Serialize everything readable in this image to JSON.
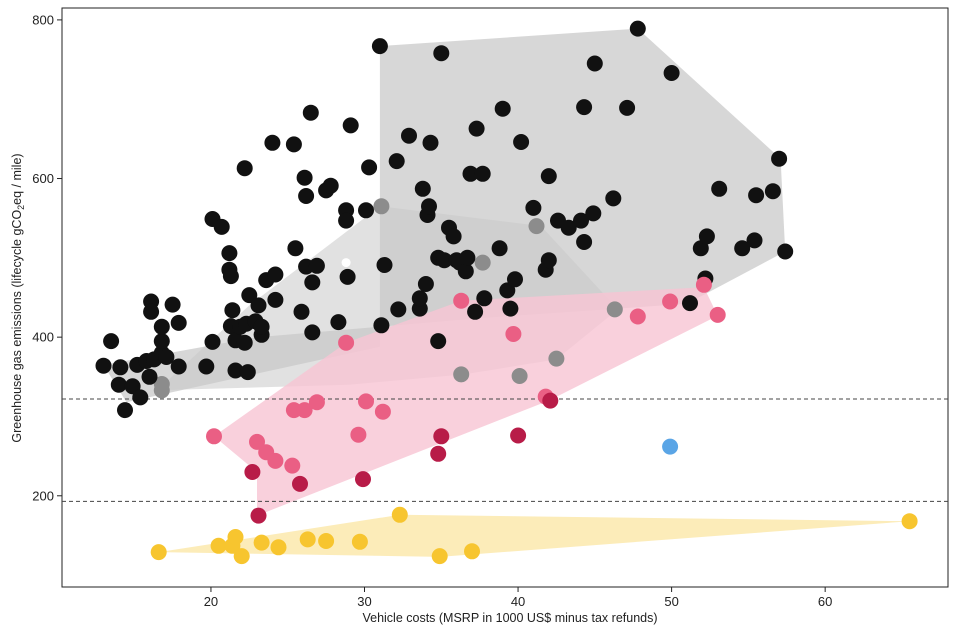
{
  "chart_data": {
    "type": "scatter",
    "title": "",
    "xlabel": "Vehicle costs (MSRP in 1000 US$ minus tax refunds)",
    "ylabel_parts": [
      "Greenhouse gas emissions (lifecycle gCO",
      "2",
      "eq / mile)"
    ],
    "xlim": [
      10.3,
      68
    ],
    "ylim": [
      85,
      815
    ],
    "xticks": [
      20,
      30,
      40,
      50,
      60
    ],
    "yticks": [
      200,
      400,
      600,
      800
    ],
    "reference_lines_y": [
      322,
      193
    ],
    "colors": {
      "black": "#111111",
      "gray": "#8c8c8c",
      "pink": "#ea5f84",
      "crimson": "#b81c48",
      "blue": "#5aa5e6",
      "yellow": "#f7c52f",
      "hull_gray": "#c9c9c9",
      "hull_pink": "#f7c4d3",
      "hull_yellow": "#fbe7a8"
    },
    "hulls": [
      {
        "color": "hull_gray",
        "opacity": 0.75,
        "points": [
          [
            13.0,
            365
          ],
          [
            14.5,
            318
          ],
          [
            31.0,
            388
          ],
          [
            31.0,
            767
          ],
          [
            47.8,
            789
          ],
          [
            57.1,
            625
          ],
          [
            57.4,
            508
          ],
          [
            51.0,
            442
          ],
          [
            37.5,
            424
          ],
          [
            23.0,
            400
          ]
        ]
      },
      {
        "color": "hull_gray",
        "opacity": 0.55,
        "points": [
          [
            16.5,
            333
          ],
          [
            22.5,
            440
          ],
          [
            31.0,
            565
          ],
          [
            41.5,
            540
          ],
          [
            46.5,
            435
          ],
          [
            42.5,
            372
          ],
          [
            36.5,
            353
          ],
          [
            29.0,
            340
          ]
        ]
      },
      {
        "color": "hull_pink",
        "opacity": 0.8,
        "points": [
          [
            20.2,
            275
          ],
          [
            28.8,
            393
          ],
          [
            36.3,
            446
          ],
          [
            52.1,
            463
          ],
          [
            53.0,
            427
          ],
          [
            42.0,
            320
          ],
          [
            23.0,
            175
          ],
          [
            23.0,
            230
          ]
        ]
      },
      {
        "color": "hull_yellow",
        "opacity": 0.8,
        "points": [
          [
            16.6,
            129
          ],
          [
            32.3,
            176
          ],
          [
            65.5,
            168
          ],
          [
            34.9,
            123
          ]
        ]
      }
    ],
    "series": [
      {
        "color": "gray",
        "points": [
          [
            16.8,
            341
          ],
          [
            16.8,
            333
          ],
          [
            31.1,
            565
          ],
          [
            41.2,
            540
          ],
          [
            37.7,
            494
          ],
          [
            42.5,
            373
          ],
          [
            40.1,
            351
          ],
          [
            36.3,
            353
          ],
          [
            46.3,
            435
          ]
        ]
      },
      {
        "color": "black",
        "points": [
          [
            13.0,
            364
          ],
          [
            13.5,
            395
          ],
          [
            14.0,
            340
          ],
          [
            14.1,
            362
          ],
          [
            14.4,
            308
          ],
          [
            14.9,
            338
          ],
          [
            15.2,
            365
          ],
          [
            15.4,
            324
          ],
          [
            15.8,
            370
          ],
          [
            16.0,
            350
          ],
          [
            16.1,
            445
          ],
          [
            16.1,
            432
          ],
          [
            16.3,
            372
          ],
          [
            16.8,
            380
          ],
          [
            16.8,
            395
          ],
          [
            16.8,
            413
          ],
          [
            17.1,
            375
          ],
          [
            17.5,
            441
          ],
          [
            17.9,
            418
          ],
          [
            17.9,
            363
          ],
          [
            19.7,
            363
          ],
          [
            20.1,
            394
          ],
          [
            20.1,
            549
          ],
          [
            20.7,
            539
          ],
          [
            21.2,
            506
          ],
          [
            21.2,
            485
          ],
          [
            21.3,
            477
          ],
          [
            21.4,
            434
          ],
          [
            21.3,
            414
          ],
          [
            21.6,
            396
          ],
          [
            21.6,
            358
          ],
          [
            21.9,
            413
          ],
          [
            22.2,
            613
          ],
          [
            22.3,
            417
          ],
          [
            22.2,
            393
          ],
          [
            22.4,
            356
          ],
          [
            22.5,
            453
          ],
          [
            22.9,
            420
          ],
          [
            23.1,
            440
          ],
          [
            23.3,
            403
          ],
          [
            23.3,
            413
          ],
          [
            23.6,
            472
          ],
          [
            24.0,
            645
          ],
          [
            24.2,
            479
          ],
          [
            24.2,
            447
          ],
          [
            25.4,
            643
          ],
          [
            25.5,
            512
          ],
          [
            25.9,
            432
          ],
          [
            26.1,
            601
          ],
          [
            26.2,
            578
          ],
          [
            26.2,
            489
          ],
          [
            26.5,
            683
          ],
          [
            26.6,
            469
          ],
          [
            26.6,
            406
          ],
          [
            26.9,
            490
          ],
          [
            27.5,
            585
          ],
          [
            27.8,
            591
          ],
          [
            28.3,
            419
          ],
          [
            28.8,
            560
          ],
          [
            28.8,
            547
          ],
          [
            28.9,
            476
          ],
          [
            29.1,
            667
          ],
          [
            30.1,
            560
          ],
          [
            30.3,
            614
          ],
          [
            31.0,
            767
          ],
          [
            31.1,
            415
          ],
          [
            31.3,
            491
          ],
          [
            32.1,
            622
          ],
          [
            32.2,
            435
          ],
          [
            32.9,
            654
          ],
          [
            33.6,
            436
          ],
          [
            33.6,
            449
          ],
          [
            33.8,
            587
          ],
          [
            34.0,
            467
          ],
          [
            34.1,
            554
          ],
          [
            34.2,
            565
          ],
          [
            34.3,
            645
          ],
          [
            34.8,
            395
          ],
          [
            34.8,
            500
          ],
          [
            35.0,
            758
          ],
          [
            35.2,
            497
          ],
          [
            35.5,
            538
          ],
          [
            35.8,
            527
          ],
          [
            36.0,
            497
          ],
          [
            36.2,
            494
          ],
          [
            36.6,
            483
          ],
          [
            36.7,
            500
          ],
          [
            36.9,
            606
          ],
          [
            37.2,
            432
          ],
          [
            37.3,
            663
          ],
          [
            37.7,
            606
          ],
          [
            37.8,
            449
          ],
          [
            38.8,
            512
          ],
          [
            39.0,
            688
          ],
          [
            39.3,
            459
          ],
          [
            39.5,
            436
          ],
          [
            39.8,
            473
          ],
          [
            40.2,
            646
          ],
          [
            41.0,
            563
          ],
          [
            41.8,
            485
          ],
          [
            42.0,
            603
          ],
          [
            42.0,
            497
          ],
          [
            42.6,
            547
          ],
          [
            43.3,
            538
          ],
          [
            44.1,
            547
          ],
          [
            44.3,
            690
          ],
          [
            44.3,
            520
          ],
          [
            44.9,
            556
          ],
          [
            45.0,
            745
          ],
          [
            46.2,
            575
          ],
          [
            47.1,
            689
          ],
          [
            47.8,
            789
          ],
          [
            50.0,
            733
          ],
          [
            51.2,
            443
          ],
          [
            51.9,
            512
          ],
          [
            52.2,
            474
          ],
          [
            52.3,
            527
          ],
          [
            53.1,
            587
          ],
          [
            54.6,
            512
          ],
          [
            55.4,
            522
          ],
          [
            55.5,
            579
          ],
          [
            56.6,
            584
          ],
          [
            57.0,
            625
          ],
          [
            57.4,
            508
          ]
        ]
      },
      {
        "color": "white_outline",
        "points": [
          [
            28.8,
            494
          ]
        ]
      },
      {
        "color": "pink",
        "points": [
          [
            20.2,
            275
          ],
          [
            23.0,
            268
          ],
          [
            23.6,
            255
          ],
          [
            24.2,
            244
          ],
          [
            25.3,
            238
          ],
          [
            25.4,
            308
          ],
          [
            26.1,
            308
          ],
          [
            26.9,
            318
          ],
          [
            28.8,
            393
          ],
          [
            29.6,
            277
          ],
          [
            30.1,
            319
          ],
          [
            31.2,
            306
          ],
          [
            36.3,
            446
          ],
          [
            39.7,
            404
          ],
          [
            41.8,
            325
          ],
          [
            47.8,
            426
          ],
          [
            49.9,
            445
          ],
          [
            52.1,
            466
          ],
          [
            53.0,
            428
          ]
        ]
      },
      {
        "color": "crimson",
        "points": [
          [
            22.7,
            230
          ],
          [
            23.1,
            175
          ],
          [
            25.8,
            215
          ],
          [
            29.9,
            221
          ],
          [
            34.8,
            253
          ],
          [
            35.0,
            275
          ],
          [
            40.0,
            276
          ],
          [
            42.1,
            320
          ]
        ]
      },
      {
        "color": "blue",
        "points": [
          [
            49.9,
            262
          ]
        ]
      },
      {
        "color": "yellow",
        "points": [
          [
            16.6,
            129
          ],
          [
            20.5,
            137
          ],
          [
            21.4,
            137
          ],
          [
            21.6,
            148
          ],
          [
            22.0,
            124
          ],
          [
            23.3,
            141
          ],
          [
            24.4,
            135
          ],
          [
            26.3,
            145
          ],
          [
            27.5,
            143
          ],
          [
            29.7,
            142
          ],
          [
            32.3,
            176
          ],
          [
            34.9,
            124
          ],
          [
            37.0,
            130
          ],
          [
            65.5,
            168
          ]
        ]
      }
    ]
  }
}
